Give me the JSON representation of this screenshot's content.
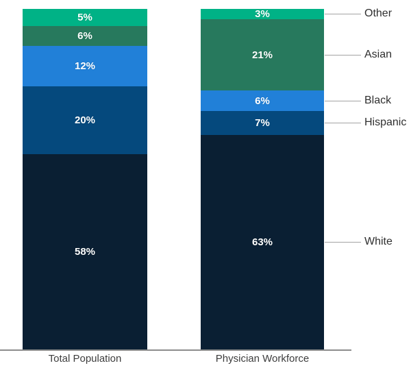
{
  "chart_data": {
    "type": "bar",
    "subtype": "stacked-100-percent-column",
    "title": "",
    "categories": [
      "Total Population",
      "Physician Workforce"
    ],
    "series": [
      {
        "name": "Other",
        "values": [
          5,
          3
        ],
        "color": "#00b286"
      },
      {
        "name": "Asian",
        "values": [
          6,
          21
        ],
        "color": "#27795d"
      },
      {
        "name": "Black",
        "values": [
          12,
          6
        ],
        "color": "#2180d8"
      },
      {
        "name": "Hispanic",
        "values": [
          20,
          7
        ],
        "color": "#05497d"
      },
      {
        "name": "White",
        "values": [
          58,
          63
        ],
        "color": "#0a1f33"
      }
    ],
    "value_format": "percent",
    "data_labels": true,
    "data_label_color": "#ffffff",
    "legend_position": "right-annotated-to-second-bar",
    "legend_entries": [
      "Other",
      "Asian",
      "Black",
      "Hispanic",
      "White"
    ],
    "xlabel": "",
    "ylabel": "",
    "ylim": [
      0,
      100
    ],
    "grid": false,
    "baseline_axis": true
  },
  "styles": {
    "axis_line_color": "#8c8c8c",
    "connector_color": "#a3a3a3",
    "category_label_color": "#3d3d3d",
    "legend_label_color": "#2f2f2f",
    "background": "#ffffff"
  }
}
